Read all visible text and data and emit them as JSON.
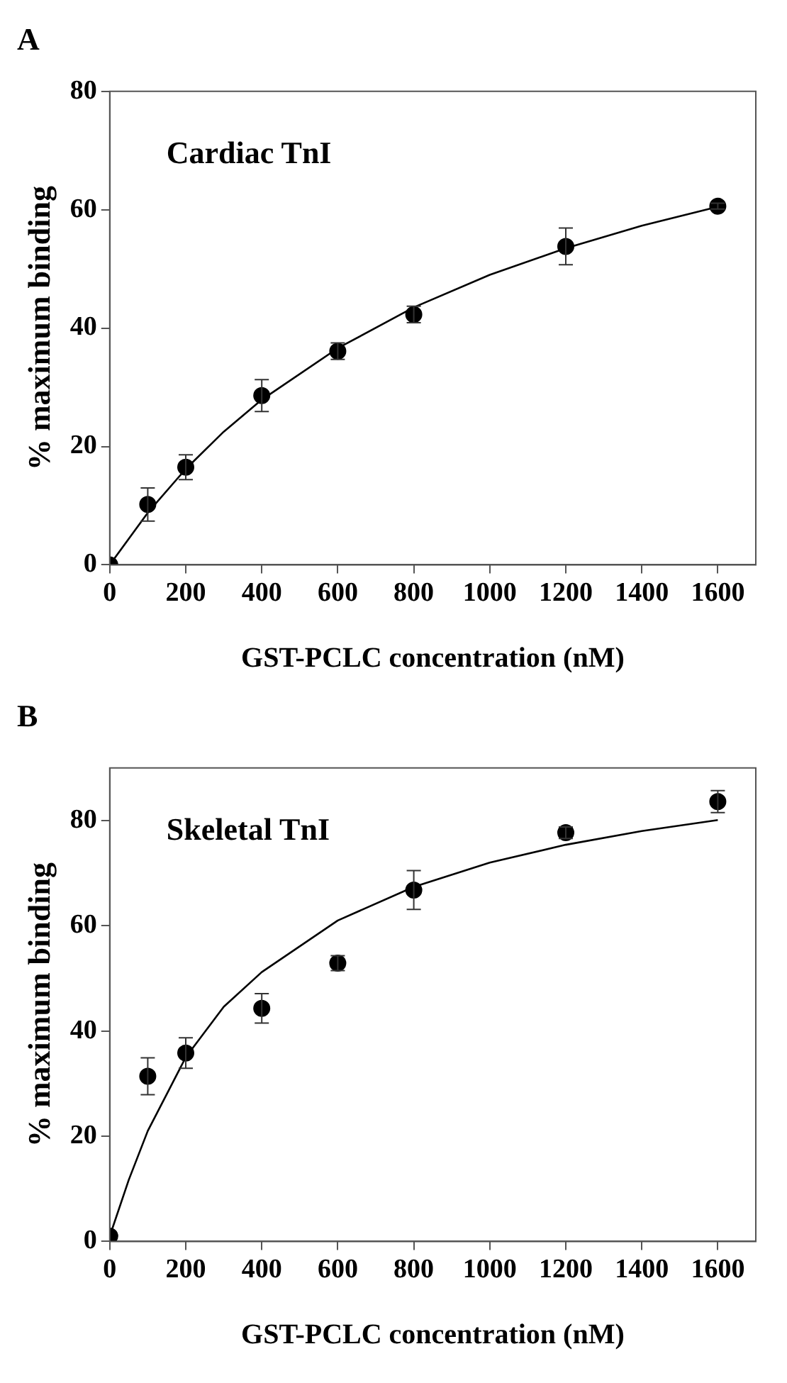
{
  "chart_data": [
    {
      "type": "scatter",
      "title": "A",
      "xlabel": "GST-PCLC concentration (nM)",
      "ylabel": "% maximum binding",
      "annotations": [
        "Cardiac TnI"
      ],
      "xlim": [
        0,
        1700
      ],
      "xticks": [
        0,
        200,
        400,
        600,
        800,
        1000,
        1200,
        1400,
        1600
      ],
      "ylim": [
        0,
        80
      ],
      "yticks": [
        0,
        20,
        40,
        60,
        80
      ],
      "grid": false,
      "legend": false,
      "series": [
        {
          "color": "#000000",
          "marker": "circle",
          "x": [
            0,
            100,
            200,
            400,
            600,
            800,
            1200,
            1600
          ],
          "values": [
            0,
            10.2,
            16.5,
            28.6,
            36.1,
            42.3,
            53.8,
            60.6
          ],
          "errors": [
            null,
            2.8,
            2.1,
            2.7,
            1.4,
            1.4,
            3.1,
            0.5
          ]
        },
        {
          "type": "line",
          "color": "#000000",
          "marker": "none",
          "x": [
            0,
            100,
            200,
            300,
            400,
            600,
            800,
            1000,
            1200,
            1400,
            1600
          ],
          "values": [
            0,
            8.8,
            16.2,
            22.5,
            27.9,
            36.6,
            43.5,
            49.0,
            53.5,
            57.3,
            60.5
          ]
        }
      ]
    },
    {
      "type": "scatter",
      "title": "B",
      "xlabel": "GST-PCLC concentration (nM)",
      "ylabel": "% maximum binding",
      "annotations": [
        "Skeletal TnI"
      ],
      "xlim": [
        0,
        1700
      ],
      "xticks": [
        0,
        200,
        400,
        600,
        800,
        1000,
        1200,
        1400,
        1600
      ],
      "ylim": [
        0,
        90
      ],
      "yticks": [
        0,
        20,
        40,
        60,
        80
      ],
      "grid": false,
      "legend": false,
      "series": [
        {
          "color": "#000000",
          "marker": "circle",
          "x": [
            0,
            100,
            200,
            400,
            600,
            800,
            1200,
            1600
          ],
          "values": [
            1.0,
            31.4,
            35.8,
            44.3,
            52.9,
            66.8,
            77.7,
            83.6
          ],
          "errors": [
            null,
            3.5,
            2.9,
            2.8,
            1.4,
            3.7,
            1.1,
            2.1
          ]
        },
        {
          "type": "line",
          "color": "#000000",
          "marker": "none",
          "x": [
            0,
            50,
            100,
            200,
            300,
            400,
            600,
            800,
            1000,
            1200,
            1400,
            1600
          ],
          "values": [
            1.0,
            11.7,
            21.0,
            35.0,
            44.6,
            51.2,
            61.0,
            67.4,
            72.0,
            75.4,
            78.0,
            80.1
          ]
        }
      ]
    }
  ]
}
